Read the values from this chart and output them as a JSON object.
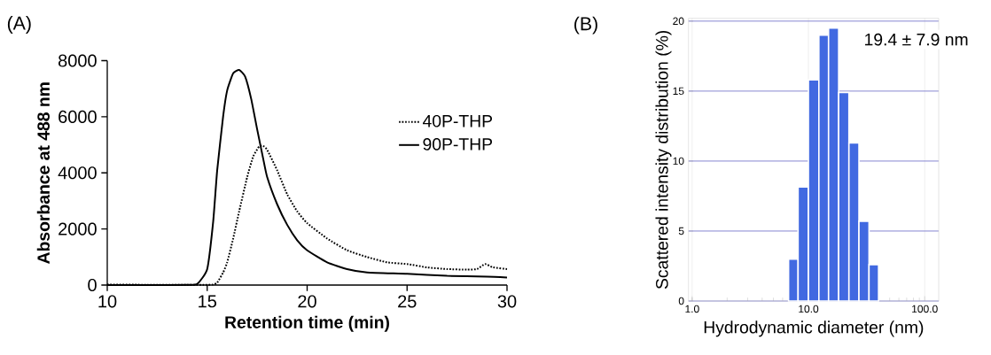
{
  "chart_data": [
    {
      "type": "line",
      "title": "(A)",
      "xlabel": "Retention time (min)",
      "ylabel": "Absorbance at 488 nm",
      "xlim": [
        10,
        30
      ],
      "ylim": [
        0,
        8000
      ],
      "xticks": [
        10,
        15,
        20,
        25,
        30
      ],
      "yticks": [
        0,
        2000,
        4000,
        6000,
        8000
      ],
      "legend": "right",
      "marker": "none",
      "series": [
        {
          "name": "40P-THP",
          "color": "#000000",
          "line_style": "dotted",
          "x": [
            10,
            12,
            14,
            15,
            15.3,
            15.5,
            15.8,
            16,
            16.3,
            16.6,
            17,
            17.3,
            17.6,
            17.8,
            18,
            18.5,
            19,
            19.5,
            20,
            21,
            22,
            23,
            24,
            25,
            26,
            27,
            28,
            28.5,
            28.9,
            29.3,
            30
          ],
          "values": [
            20,
            10,
            10,
            10,
            20,
            85,
            450,
            810,
            1660,
            2630,
            3850,
            4580,
            4940,
            4960,
            4820,
            4090,
            3240,
            2630,
            2210,
            1660,
            1240,
            1000,
            810,
            750,
            630,
            570,
            550,
            570,
            750,
            630,
            570
          ]
        },
        {
          "name": "90P-THP",
          "color": "#000000",
          "line_style": "solid",
          "x": [
            10,
            12,
            14,
            14.5,
            15,
            15.3,
            15.5,
            15.8,
            16,
            16.3,
            16.6,
            16.9,
            17.2,
            17.5,
            17.8,
            18,
            18.5,
            19,
            19.5,
            20,
            21,
            22,
            23,
            25,
            27,
            29,
            30
          ],
          "values": [
            0,
            0,
            10,
            40,
            570,
            2270,
            4090,
            6030,
            6940,
            7550,
            7670,
            7430,
            6640,
            5550,
            4510,
            3850,
            2880,
            2150,
            1600,
            1240,
            810,
            570,
            450,
            400,
            330,
            300,
            270
          ]
        }
      ]
    },
    {
      "type": "histogram",
      "title": "(B)",
      "xlabel": "Hydrodynamic diameter (nm)",
      "ylabel": "Scattered intensity distribution (%)",
      "log": "x",
      "xlim": [
        0.93,
        132
      ],
      "ylim": [
        0,
        20.2
      ],
      "xticks": [
        {
          "value": 1,
          "label": "1.0"
        },
        {
          "value": 10,
          "label": "10.0"
        },
        {
          "value": 100,
          "label": "100.0"
        }
      ],
      "yticks": [
        0,
        5,
        10,
        15,
        20
      ],
      "grid": true,
      "color": "#4169e1",
      "bins": [
        6.75,
        8.15,
        10.0,
        12.3,
        14.9,
        18.2,
        22.3,
        27.2,
        33.2,
        40.1
      ],
      "values": [
        3.0,
        8.15,
        15.8,
        19.0,
        19.5,
        14.9,
        11.3,
        5.7,
        2.6
      ],
      "annotations": [
        "19.4 ± 7.9 nm"
      ]
    }
  ]
}
